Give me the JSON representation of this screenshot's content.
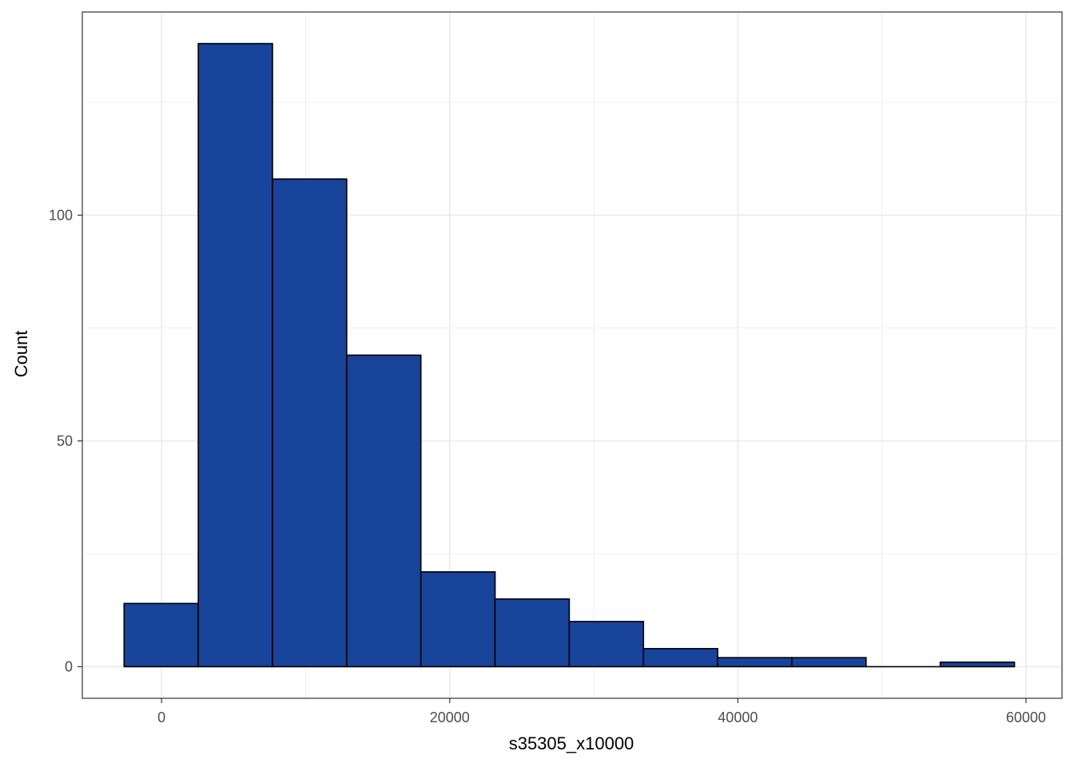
{
  "chart_data": {
    "type": "bar",
    "subtype": "histogram",
    "xlabel": "s35305_x10000",
    "ylabel": "Count",
    "xlim": [
      -5500,
      62500
    ],
    "ylim": [
      -7,
      145
    ],
    "x_ticks": [
      {
        "value": 0,
        "label": "0"
      },
      {
        "value": 20000,
        "label": "20000"
      },
      {
        "value": 40000,
        "label": "40000"
      },
      {
        "value": 60000,
        "label": "60000"
      }
    ],
    "y_ticks": [
      {
        "value": 0,
        "label": "0"
      },
      {
        "value": 50,
        "label": "50"
      },
      {
        "value": 100,
        "label": "100"
      }
    ],
    "bins": [
      {
        "x0": -2600,
        "x1": 2550,
        "count": 14
      },
      {
        "x0": 2550,
        "x1": 7700,
        "count": 138
      },
      {
        "x0": 7700,
        "x1": 12850,
        "count": 108
      },
      {
        "x0": 12850,
        "x1": 18000,
        "count": 69
      },
      {
        "x0": 18000,
        "x1": 23150,
        "count": 21
      },
      {
        "x0": 23150,
        "x1": 28300,
        "count": 15
      },
      {
        "x0": 28300,
        "x1": 33450,
        "count": 10
      },
      {
        "x0": 33450,
        "x1": 38600,
        "count": 4
      },
      {
        "x0": 38600,
        "x1": 43750,
        "count": 2
      },
      {
        "x0": 43750,
        "x1": 48900,
        "count": 2
      },
      {
        "x0": 48900,
        "x1": 54050,
        "count": 0
      },
      {
        "x0": 54050,
        "x1": 59200,
        "count": 1
      }
    ],
    "bar_fill": "#18439a",
    "bar_stroke": "#000000",
    "grid": true,
    "grid_color": "#ebebeb",
    "panel_border": "#333333",
    "theme": "bw"
  }
}
